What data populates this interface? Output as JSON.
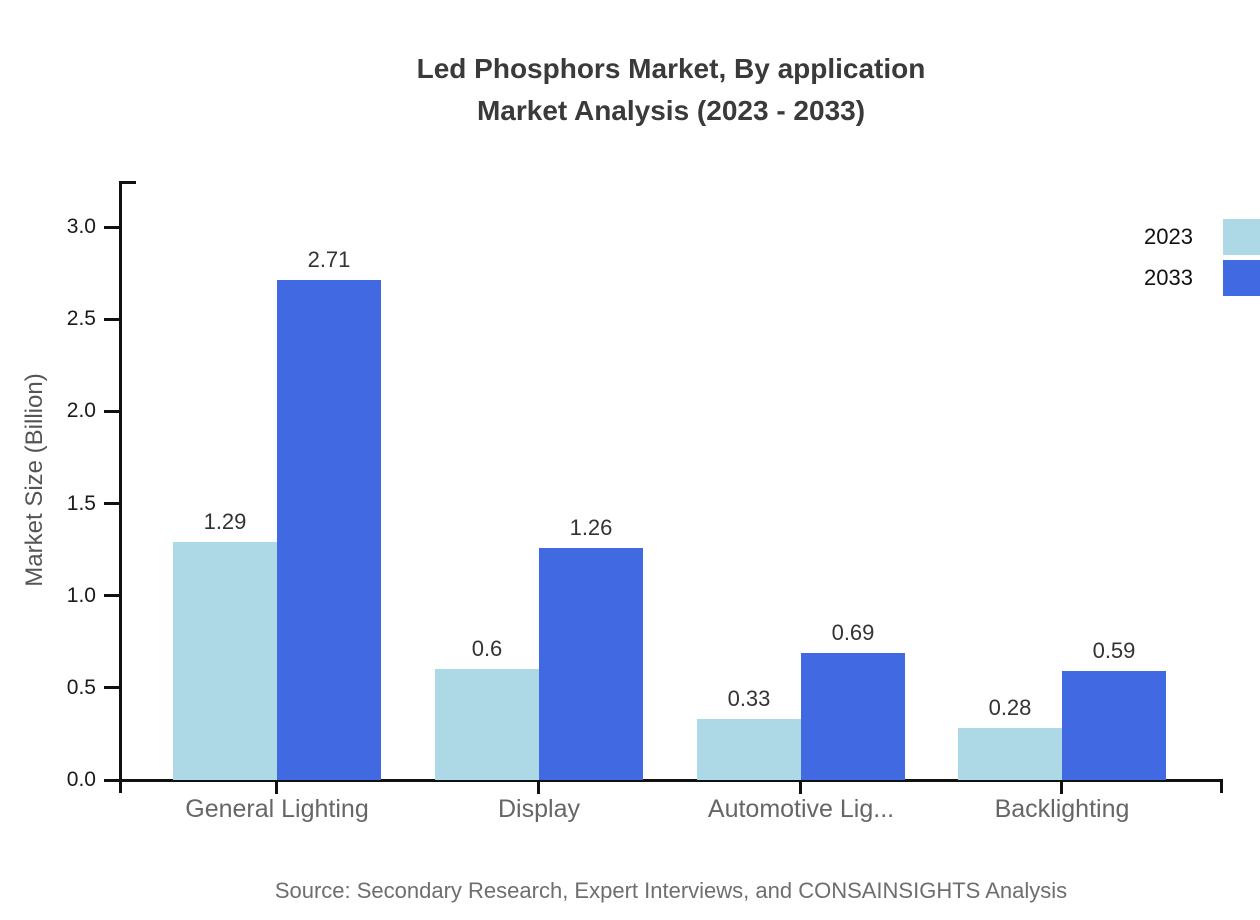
{
  "title": {
    "line1": "Led Phosphors Market, By application",
    "line2": "Market Analysis (2023 - 2033)"
  },
  "source_note": "Source: Secondary Research, Expert Interviews, and CONSAINSIGHTS Analysis",
  "chart_data": {
    "type": "bar",
    "title": "Led Phosphors Market, By application Market Analysis (2023 - 2033)",
    "xlabel": "",
    "ylabel": "Market Size (Billion)",
    "ylim": [
      0,
      3.25
    ],
    "yticks": [
      0,
      0.5,
      1,
      1.5,
      2,
      2.5,
      3
    ],
    "ytick_labels": [
      "0.0",
      "0.5",
      "1.0",
      "1.5",
      "2.0",
      "2.5",
      "3.0"
    ],
    "categories": [
      "General Lighting",
      "Display",
      "Automotive Lig...",
      "Backlighting"
    ],
    "grid": false,
    "legend_position": "top-right",
    "value_labels_shown": true,
    "series": [
      {
        "name": "2023",
        "color": "#ADD8E6",
        "values": [
          1.29,
          0.6,
          0.33,
          0.28
        ],
        "value_labels": [
          "1.29",
          "0.6",
          "0.33",
          "0.28"
        ]
      },
      {
        "name": "2033",
        "color": "#4169E1",
        "values": [
          2.71,
          1.26,
          0.69,
          0.59
        ],
        "value_labels": [
          "2.71",
          "1.26",
          "0.69",
          "0.59"
        ]
      }
    ]
  }
}
